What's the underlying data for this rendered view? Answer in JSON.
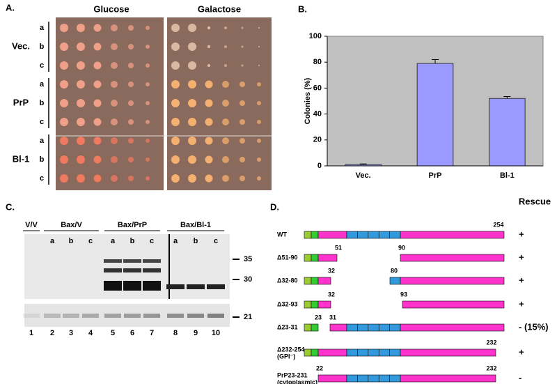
{
  "panel_a": {
    "label": "A.",
    "conditions": [
      "Glucose",
      "Galactose"
    ],
    "groups": [
      {
        "name": "Vec.",
        "rows": [
          "a",
          "b",
          "c"
        ]
      },
      {
        "name": "PrP",
        "rows": [
          "a",
          "b",
          "c"
        ]
      },
      {
        "name": "Bl-1",
        "rows": [
          "a",
          "b",
          "c"
        ]
      }
    ]
  },
  "chart_data": {
    "type": "bar",
    "label": "B.",
    "categories": [
      "Vec.",
      "PrP",
      "Bl-1"
    ],
    "values": [
      1,
      79,
      52
    ],
    "errors": [
      0.5,
      3,
      1.5
    ],
    "color": "#9999ff",
    "background": "#c0c0c0",
    "ylabel": "Colonies (%)",
    "ylim": [
      0,
      100
    ],
    "yticks": [
      0,
      20,
      40,
      60,
      80,
      100
    ]
  },
  "panel_c": {
    "label": "C.",
    "groups": [
      {
        "name": "V/V",
        "lanes": []
      },
      {
        "name": "Bax/V",
        "lanes": [
          "a",
          "b",
          "c"
        ]
      },
      {
        "name": "Bax/PrP",
        "lanes": [
          "a",
          "b",
          "c"
        ]
      },
      {
        "name": "Bax/Bl-1",
        "lanes": [
          "a",
          "b",
          "c"
        ]
      }
    ],
    "markers": [
      "35",
      "30",
      "21"
    ],
    "lane_numbers": [
      "1",
      "2",
      "3",
      "4",
      "5",
      "6",
      "7",
      "8",
      "9",
      "10"
    ]
  },
  "panel_d": {
    "label": "D.",
    "header": "Rescue",
    "constructs": [
      {
        "name": "WT",
        "positions": [
          "254"
        ],
        "rescue": "+"
      },
      {
        "name": "Δ51-90",
        "positions": [
          "51",
          "90"
        ],
        "rescue": "+"
      },
      {
        "name": "Δ32-80",
        "positions": [
          "32",
          "80"
        ],
        "rescue": "+"
      },
      {
        "name": "Δ32-93",
        "positions": [
          "32",
          "93"
        ],
        "rescue": "+"
      },
      {
        "name": "Δ23-31",
        "positions": [
          "23",
          "31"
        ],
        "rescue": "- (15%)"
      },
      {
        "name": "Δ232-254",
        "note": "(GPI⁻)",
        "positions": [
          "232"
        ],
        "rescue": "+"
      },
      {
        "name": "PrP23-231",
        "note": "(cytoplasmic)",
        "positions": [
          "22",
          "232"
        ],
        "rescue": "-"
      }
    ]
  }
}
